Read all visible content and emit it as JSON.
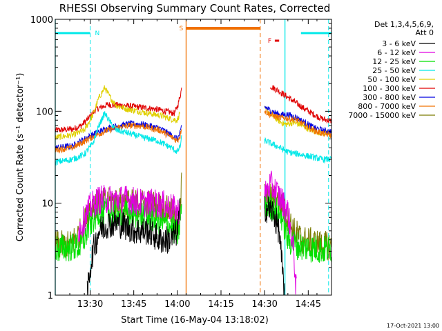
{
  "chart_data": {
    "type": "line",
    "title": "RHESSI Observing Summary Count Rates, Corrected",
    "xlabel": "Start Time (16-May-04 13:18:02)",
    "ylabel": "Corrected Count Rate (s⁻¹ detector⁻¹)",
    "x_unit": "minutes after 13:18:02",
    "xlim": [
      0,
      95
    ],
    "ylim": [
      1,
      1000
    ],
    "y_scale": "log",
    "x_ticks": [
      {
        "x": 12,
        "label": "13:30"
      },
      {
        "x": 27,
        "label": "13:45"
      },
      {
        "x": 42,
        "label": "14:00"
      },
      {
        "x": 57,
        "label": "14:15"
      },
      {
        "x": 72,
        "label": "14:30"
      },
      {
        "x": 87,
        "label": "14:45"
      }
    ],
    "y_ticks": [
      {
        "y": 1,
        "label": "1"
      },
      {
        "y": 10,
        "label": "10"
      },
      {
        "y": 100,
        "label": "100"
      },
      {
        "y": 1000,
        "label": "1000"
      }
    ],
    "legend": {
      "position": "right",
      "header": [
        "Det 1,3,4,5,6,9,",
        "Att 0"
      ],
      "entries": [
        {
          "label": "3 - 6 keV",
          "color": "#000000"
        },
        {
          "label": "6 - 12 keV",
          "color": "#e000e0"
        },
        {
          "label": "12 - 25 keV",
          "color": "#00e000"
        },
        {
          "label": "25 - 50 keV",
          "color": "#00e8e8"
        },
        {
          "label": "50 - 100 keV",
          "color": "#e0d000"
        },
        {
          "label": "100 - 300 keV",
          "color": "#e00000"
        },
        {
          "label": "300 - 800 keV",
          "color": "#0000e0"
        },
        {
          "label": "800 - 7000 keV",
          "color": "#f07000"
        },
        {
          "label": "7000 - 15000 keV",
          "color": "#7a7a00"
        }
      ]
    },
    "markers": [
      {
        "label": "N",
        "color": "#00e8e8"
      },
      {
        "label": "S",
        "color": "#f07000"
      },
      {
        "label": "F",
        "color": "#e00000"
      }
    ],
    "series": [
      {
        "color": "#e00000",
        "segments": [
          [
            [
              0,
              62
            ],
            [
              6,
              64
            ],
            [
              9,
              70
            ],
            [
              12,
              88
            ],
            [
              14,
              105
            ],
            [
              18,
              118
            ],
            [
              24,
              115
            ],
            [
              30,
              110
            ],
            [
              35,
              105
            ],
            [
              39,
              98
            ],
            [
              41,
              95
            ],
            [
              42,
              112
            ],
            [
              43,
              150
            ],
            [
              43.5,
              180
            ]
          ],
          [
            [
              74,
              188
            ],
            [
              77,
              165
            ],
            [
              80,
              142
            ],
            [
              83,
              122
            ],
            [
              86,
              105
            ],
            [
              89,
              92
            ],
            [
              92,
              82
            ],
            [
              95,
              78
            ]
          ]
        ]
      },
      {
        "color": "#e0d000",
        "segments": [
          [
            [
              0,
              52
            ],
            [
              6,
              55
            ],
            [
              10,
              62
            ],
            [
              13,
              92
            ],
            [
              15,
              140
            ],
            [
              17,
              180
            ],
            [
              19,
              140
            ],
            [
              21,
              115
            ],
            [
              25,
              105
            ],
            [
              30,
              98
            ],
            [
              36,
              90
            ],
            [
              40,
              82
            ],
            [
              42,
              80
            ],
            [
              43,
              100
            ]
          ],
          [
            [
              72,
              105
            ],
            [
              74,
              95
            ],
            [
              77,
              78
            ],
            [
              79,
              72
            ],
            [
              82,
              75
            ],
            [
              85,
              70
            ],
            [
              88,
              62
            ],
            [
              92,
              58
            ],
            [
              95,
              56
            ]
          ]
        ]
      },
      {
        "color": "#0000e0",
        "segments": [
          [
            [
              0,
              40
            ],
            [
              6,
              42
            ],
            [
              10,
              50
            ],
            [
              14,
              58
            ],
            [
              18,
              65
            ],
            [
              22,
              70
            ],
            [
              26,
              73
            ],
            [
              30,
              72
            ],
            [
              36,
              65
            ],
            [
              40,
              55
            ],
            [
              42,
              50
            ],
            [
              43,
              58
            ],
            [
              43.5,
              72
            ]
          ],
          [
            [
              72,
              112
            ],
            [
              74,
              102
            ],
            [
              77,
              92
            ],
            [
              80,
              92
            ],
            [
              83,
              85
            ],
            [
              86,
              75
            ],
            [
              89,
              66
            ],
            [
              92,
              62
            ],
            [
              95,
              60
            ]
          ]
        ]
      },
      {
        "color": "#f07000",
        "segments": [
          [
            [
              0,
              38
            ],
            [
              6,
              40
            ],
            [
              10,
              47
            ],
            [
              14,
              55
            ],
            [
              18,
              62
            ],
            [
              22,
              67
            ],
            [
              26,
              70
            ],
            [
              30,
              69
            ],
            [
              36,
              62
            ],
            [
              40,
              52
            ],
            [
              42,
              48
            ],
            [
              43,
              55
            ],
            [
              43.5,
              70
            ]
          ],
          [
            [
              72,
              100
            ],
            [
              74,
              92
            ],
            [
              77,
              85
            ],
            [
              80,
              84
            ],
            [
              83,
              80
            ],
            [
              86,
              70
            ],
            [
              89,
              62
            ],
            [
              92,
              57
            ],
            [
              95,
              55
            ]
          ]
        ]
      },
      {
        "color": "#00e8e8",
        "segments": [
          [
            [
              0,
              28
            ],
            [
              6,
              30
            ],
            [
              10,
              34
            ],
            [
              13,
              45
            ],
            [
              15,
              70
            ],
            [
              17,
              95
            ],
            [
              19,
              75
            ],
            [
              21,
              62
            ],
            [
              25,
              58
            ],
            [
              30,
              52
            ],
            [
              35,
              48
            ],
            [
              40,
              40
            ],
            [
              42,
              36
            ],
            [
              43,
              42
            ],
            [
              43.5,
              52
            ]
          ],
          [
            [
              72,
              48
            ],
            [
              76,
              42
            ],
            [
              80,
              36
            ],
            [
              84,
              34
            ],
            [
              88,
              32
            ],
            [
              92,
              30
            ],
            [
              95,
              30
            ]
          ]
        ]
      },
      {
        "color": "#7a7a00",
        "segments": [
          [
            [
              0,
              3.5
            ],
            [
              5,
              3.5
            ],
            [
              9,
              5
            ],
            [
              12,
              9
            ],
            [
              15,
              10
            ],
            [
              20,
              10.5
            ],
            [
              25,
              10
            ],
            [
              30,
              10
            ],
            [
              35,
              9.5
            ],
            [
              40,
              8
            ],
            [
              42,
              6
            ],
            [
              43,
              7
            ],
            [
              43.5,
              22
            ]
          ],
          [
            [
              72,
              12
            ],
            [
              76,
              11
            ],
            [
              79,
              8
            ],
            [
              82,
              5
            ],
            [
              85,
              4
            ],
            [
              88,
              3.8
            ],
            [
              92,
              3.5
            ],
            [
              95,
              3.4
            ]
          ]
        ]
      },
      {
        "color": "#00e000",
        "segments": [
          [
            [
              0,
              3.2
            ],
            [
              5,
              3.3
            ],
            [
              9,
              3.4
            ],
            [
              12,
              6
            ],
            [
              15,
              8
            ],
            [
              20,
              8
            ],
            [
              25,
              7.5
            ],
            [
              30,
              7.5
            ],
            [
              35,
              6.5
            ],
            [
              40,
              5.5
            ],
            [
              42,
              4.5
            ],
            [
              43,
              6
            ],
            [
              43.5,
              10
            ]
          ],
          [
            [
              72,
              10
            ],
            [
              75,
              9
            ],
            [
              78,
              7
            ],
            [
              80,
              4
            ],
            [
              83,
              3.5
            ],
            [
              86,
              3.3
            ],
            [
              89,
              3.2
            ],
            [
              92,
              3.1
            ],
            [
              95,
              3.2
            ]
          ]
        ]
      },
      {
        "color": "#e000e0",
        "segments": [
          [
            [
              8,
              5
            ],
            [
              12,
              9
            ],
            [
              15,
              11
            ],
            [
              20,
              11
            ],
            [
              25,
              11
            ],
            [
              30,
              10
            ],
            [
              35,
              10
            ],
            [
              40,
              9
            ],
            [
              42,
              8
            ],
            [
              43,
              9
            ]
          ],
          [
            [
              72,
              12
            ],
            [
              74,
              16
            ],
            [
              77,
              12
            ],
            [
              80,
              8
            ],
            [
              82,
              3
            ],
            [
              83,
              1
            ]
          ]
        ]
      },
      {
        "color": "#000000",
        "segments": [
          [
            [
              11,
              1
            ],
            [
              12,
              2
            ],
            [
              13,
              3
            ],
            [
              15,
              5
            ],
            [
              18,
              6
            ],
            [
              22,
              6
            ],
            [
              28,
              5
            ],
            [
              32,
              5
            ],
            [
              36,
              4
            ],
            [
              40,
              4
            ],
            [
              42,
              5
            ],
            [
              43,
              9
            ]
          ],
          [
            [
              72,
              9
            ],
            [
              75,
              8
            ],
            [
              77,
              5
            ],
            [
              78,
              2
            ],
            [
              79,
              1
            ]
          ]
        ]
      }
    ],
    "attenuator_spans": [
      {
        "label": "N",
        "color": "#00e8e8",
        "bars": [
          [
            0,
            12
          ],
          [
            84.5,
            95
          ]
        ],
        "dashed_at": [
          12,
          94
        ],
        "solid_at": [
          0,
          79
        ]
      },
      {
        "label": "S",
        "color": "#f07000",
        "bars": [
          [
            45,
            70.5
          ]
        ],
        "solid_at": [
          45
        ],
        "dashed_at": [
          70.5
        ]
      },
      {
        "label": "F",
        "color": "#e00000",
        "bars": [
          [
            75.5,
            77
          ]
        ]
      }
    ]
  },
  "footer": {
    "timestamp": "17-Oct-2021 13:00"
  }
}
